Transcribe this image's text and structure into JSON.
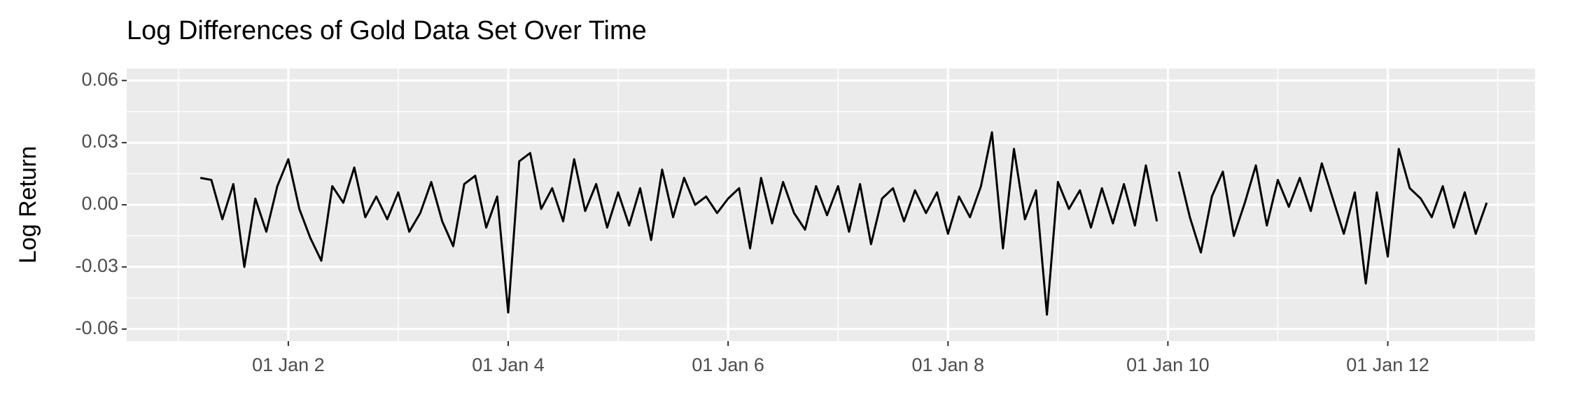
{
  "chart_data": {
    "type": "line",
    "title": "Log Differences of Gold Data Set Over Time",
    "ylabel": "Log Return",
    "x": [
      1.2,
      1.3,
      1.4,
      1.5,
      1.6,
      1.7,
      1.8,
      1.9,
      2.0,
      2.1,
      2.2,
      2.3,
      2.4,
      2.5,
      2.6,
      2.7,
      2.8,
      2.9,
      3.0,
      3.1,
      3.2,
      3.3,
      3.4,
      3.5,
      3.6,
      3.7,
      3.8,
      3.9,
      4.0,
      4.1,
      4.2,
      4.3,
      4.4,
      4.5,
      4.6,
      4.7,
      4.8,
      4.9,
      5.0,
      5.1,
      5.2,
      5.3,
      5.4,
      5.5,
      5.6,
      5.7,
      5.8,
      5.9,
      6.0,
      6.1,
      6.2,
      6.3,
      6.4,
      6.5,
      6.6,
      6.7,
      6.8,
      6.9,
      7.0,
      7.1,
      7.2,
      7.3,
      7.4,
      7.5,
      7.6,
      7.7,
      7.8,
      7.9,
      8.0,
      8.1,
      8.2,
      8.3,
      8.4,
      8.5,
      8.6,
      8.7,
      8.8,
      8.9,
      9.0,
      9.1,
      9.2,
      9.3,
      9.4,
      9.5,
      9.6,
      9.7,
      9.8,
      9.9,
      10.0,
      10.1,
      10.2,
      10.3,
      10.4,
      10.5,
      10.6,
      10.7,
      10.8,
      10.9,
      11.0,
      11.1,
      11.2,
      11.3,
      11.4,
      11.5,
      11.6,
      11.7,
      11.8,
      11.9,
      12.0,
      12.1,
      12.2,
      12.3,
      12.4,
      12.5,
      12.6,
      12.7,
      12.8,
      12.9
    ],
    "series": [
      {
        "color": "#000000",
        "values": [
          0.013,
          0.012,
          -0.007,
          0.01,
          -0.03,
          0.003,
          -0.013,
          0.009,
          0.022,
          -0.002,
          -0.016,
          -0.027,
          0.009,
          0.001,
          0.018,
          -0.006,
          0.004,
          -0.007,
          0.006,
          -0.013,
          -0.004,
          0.011,
          -0.008,
          -0.02,
          0.01,
          0.014,
          -0.011,
          0.004,
          -0.052,
          0.021,
          0.025,
          -0.002,
          0.008,
          -0.008,
          0.022,
          -0.003,
          0.01,
          -0.011,
          0.006,
          -0.01,
          0.008,
          -0.017,
          0.017,
          -0.006,
          0.013,
          0.0,
          0.004,
          -0.004,
          0.003,
          0.008,
          -0.021,
          0.013,
          -0.009,
          0.011,
          -0.004,
          -0.012,
          0.009,
          -0.005,
          0.009,
          -0.013,
          0.01,
          -0.019,
          0.003,
          0.008,
          -0.008,
          0.007,
          -0.004,
          0.006,
          -0.014,
          0.004,
          -0.006,
          0.009,
          0.035,
          -0.021,
          0.027,
          -0.007,
          0.007,
          -0.053,
          0.011,
          -0.002,
          0.007,
          -0.011,
          0.008,
          -0.009,
          0.01,
          -0.01,
          0.019,
          -0.008,
          null,
          0.016,
          -0.006,
          -0.023,
          0.004,
          0.016,
          -0.015,
          0.001,
          0.019,
          -0.01,
          0.012,
          -0.001,
          0.013,
          -0.003,
          0.02,
          0.003,
          -0.014,
          0.006,
          -0.038,
          0.006,
          -0.025,
          0.027,
          0.008,
          0.003,
          -0.006,
          0.009,
          -0.011,
          0.006,
          -0.014,
          0.001
        ]
      }
    ],
    "xlim": [
      0.53,
      13.34
    ],
    "xticks": [
      {
        "value": 2,
        "label": "01 Jan 2"
      },
      {
        "value": 4,
        "label": "01 Jan 4"
      },
      {
        "value": 6,
        "label": "01 Jan 6"
      },
      {
        "value": 8,
        "label": "01 Jan 8"
      },
      {
        "value": 10,
        "label": "01 Jan 10"
      },
      {
        "value": 12,
        "label": "01 Jan 12"
      }
    ],
    "ylim": [
      -0.0658,
      0.0658
    ],
    "yticks": [
      -0.06,
      -0.03,
      {
        "value": 0,
        "label": "0.00"
      },
      0.03,
      0.06
    ],
    "grid": true
  }
}
